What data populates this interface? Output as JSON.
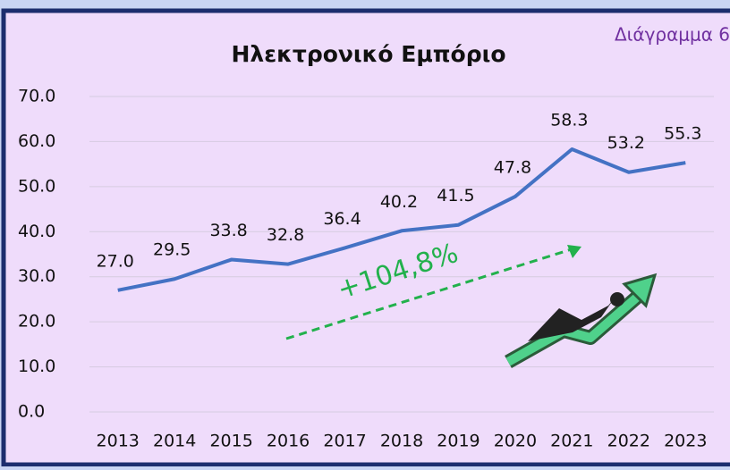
{
  "chart_data": {
    "type": "line",
    "title": "Ηλεκτρονικό Εμπόριο",
    "figure_label": "Διάγραμμα 6",
    "annotation": "+104,8%",
    "categories": [
      "2013",
      "2014",
      "2015",
      "2016",
      "2017",
      "2018",
      "2019",
      "2020",
      "2021",
      "2022",
      "2023"
    ],
    "series": [
      {
        "color": "#4472c4",
        "values": [
          27.0,
          29.5,
          33.8,
          32.8,
          36.4,
          40.2,
          41.5,
          47.8,
          58.3,
          53.2,
          55.3
        ],
        "value_labels": [
          "27.0",
          "29.5",
          "33.8",
          "32.8",
          "36.4",
          "40.2",
          "41.5",
          "47.8",
          "58.3",
          "53.2",
          "55.3"
        ]
      }
    ],
    "ylim": [
      0,
      70
    ],
    "yticks": [
      {
        "value": 0,
        "label": "0.0"
      },
      {
        "value": 10,
        "label": "10.0"
      },
      {
        "value": 20,
        "label": "20.0"
      },
      {
        "value": 30,
        "label": "30.0"
      },
      {
        "value": 40,
        "label": "40.0"
      },
      {
        "value": 50,
        "label": "50.0"
      },
      {
        "value": 60,
        "label": "60.0"
      },
      {
        "value": 70,
        "label": "70.0"
      }
    ],
    "grid": true
  }
}
